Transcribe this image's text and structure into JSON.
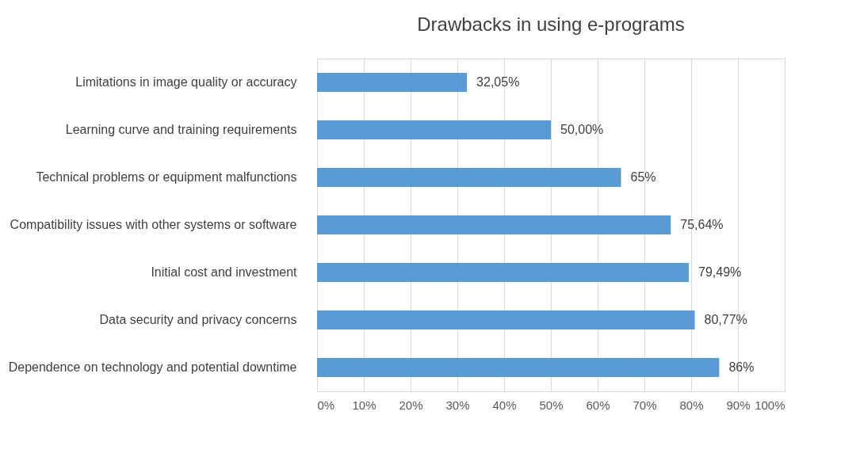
{
  "chart_data": {
    "type": "bar",
    "orientation": "horizontal",
    "title": "Drawbacks in using e-programs",
    "categories": [
      "Limitations in image quality or accuracy",
      "Learning curve and training requirements",
      "Technical problems or equipment malfunctions",
      "Compatibility issues with other systems or software",
      "Initial cost and investment",
      "Data security and privacy concerns",
      "Dependence on technology and potential downtime"
    ],
    "values": [
      32.05,
      50,
      65,
      75.64,
      79.49,
      80.77,
      86
    ],
    "value_labels": [
      "32,05%",
      "50,00%",
      "65%",
      "75,64%",
      "79,49%",
      "80,77%",
      "86%"
    ],
    "color": "#5b9bd5",
    "xlim": [
      0,
      100
    ],
    "xticks": [
      {
        "value": 0,
        "label": "0%"
      },
      {
        "value": 10,
        "label": "10%"
      },
      {
        "value": 20,
        "label": "20%"
      },
      {
        "value": 30,
        "label": "30%"
      },
      {
        "value": 40,
        "label": "40%"
      },
      {
        "value": 50,
        "label": "50%"
      },
      {
        "value": 60,
        "label": "60%"
      },
      {
        "value": 70,
        "label": "70%"
      },
      {
        "value": 80,
        "label": "80%"
      },
      {
        "value": 90,
        "label": "90%"
      },
      {
        "value": 100,
        "label": "100%"
      }
    ],
    "grid": "x"
  }
}
